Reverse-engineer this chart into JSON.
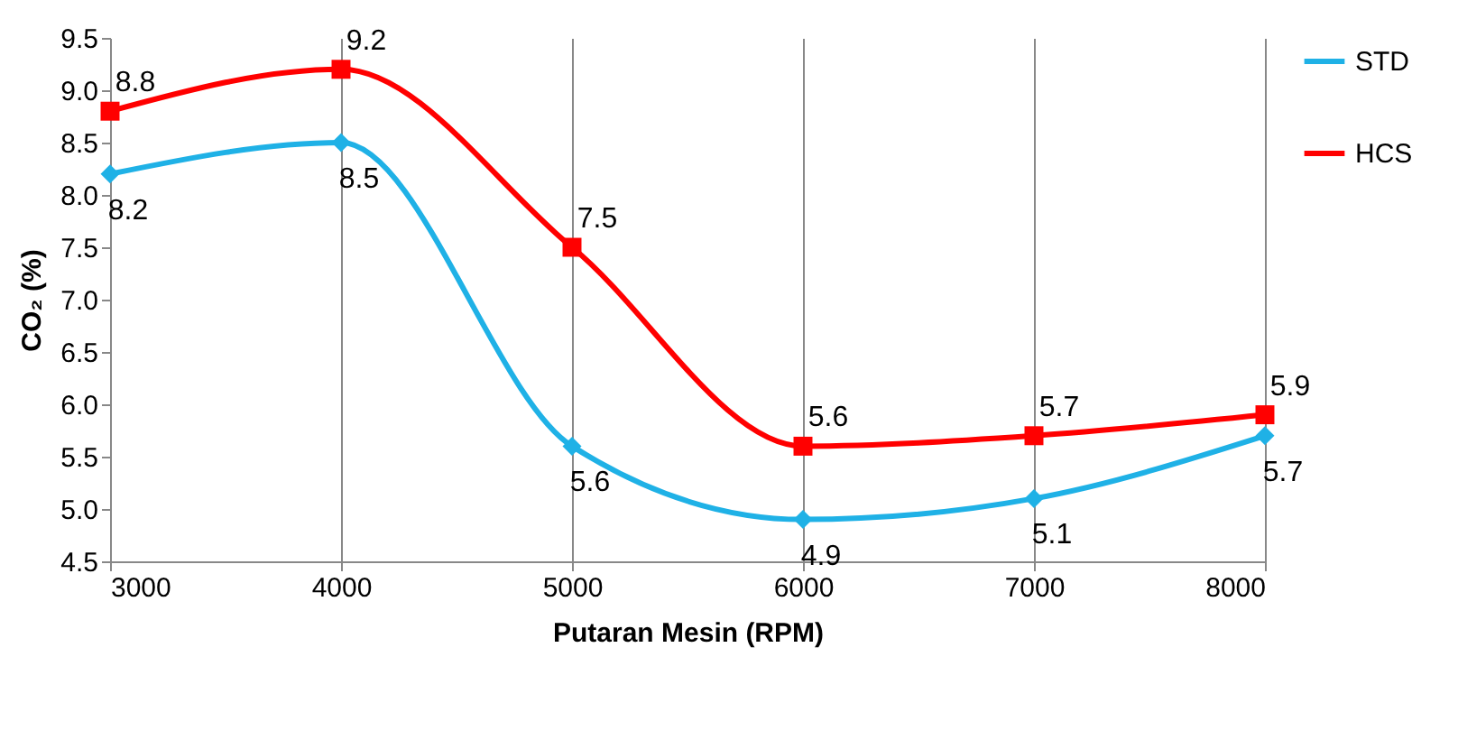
{
  "chart_data": {
    "type": "line",
    "xlabel": "Putaran Mesin (RPM)",
    "ylabel": "CO₂ (%)",
    "x": [
      3000,
      4000,
      5000,
      6000,
      7000,
      8000
    ],
    "series": [
      {
        "name": "STD",
        "color": "#1fb1e6",
        "marker": "diamond",
        "values": [
          8.2,
          8.5,
          5.6,
          4.9,
          5.1,
          5.7
        ]
      },
      {
        "name": "HCS",
        "color": "#ff0000",
        "marker": "square",
        "values": [
          8.8,
          9.2,
          7.5,
          5.6,
          5.7,
          5.9
        ]
      }
    ],
    "xlim": [
      3000,
      8000
    ],
    "xticks": [
      3000,
      4000,
      5000,
      6000,
      7000,
      8000
    ],
    "ylim": [
      4.5,
      9.5
    ],
    "yticks": [
      4.5,
      {
        "value": 5,
        "label": "5.0"
      },
      5.5,
      {
        "value": 6,
        "label": "6.0"
      },
      6.5,
      {
        "value": 7,
        "label": "7.0"
      },
      7.5,
      {
        "value": 8,
        "label": "8.0"
      },
      8.5,
      {
        "value": 9,
        "label": "9.0"
      },
      9.5
    ],
    "grid": "x",
    "legend": "right",
    "data_labels": true
  }
}
